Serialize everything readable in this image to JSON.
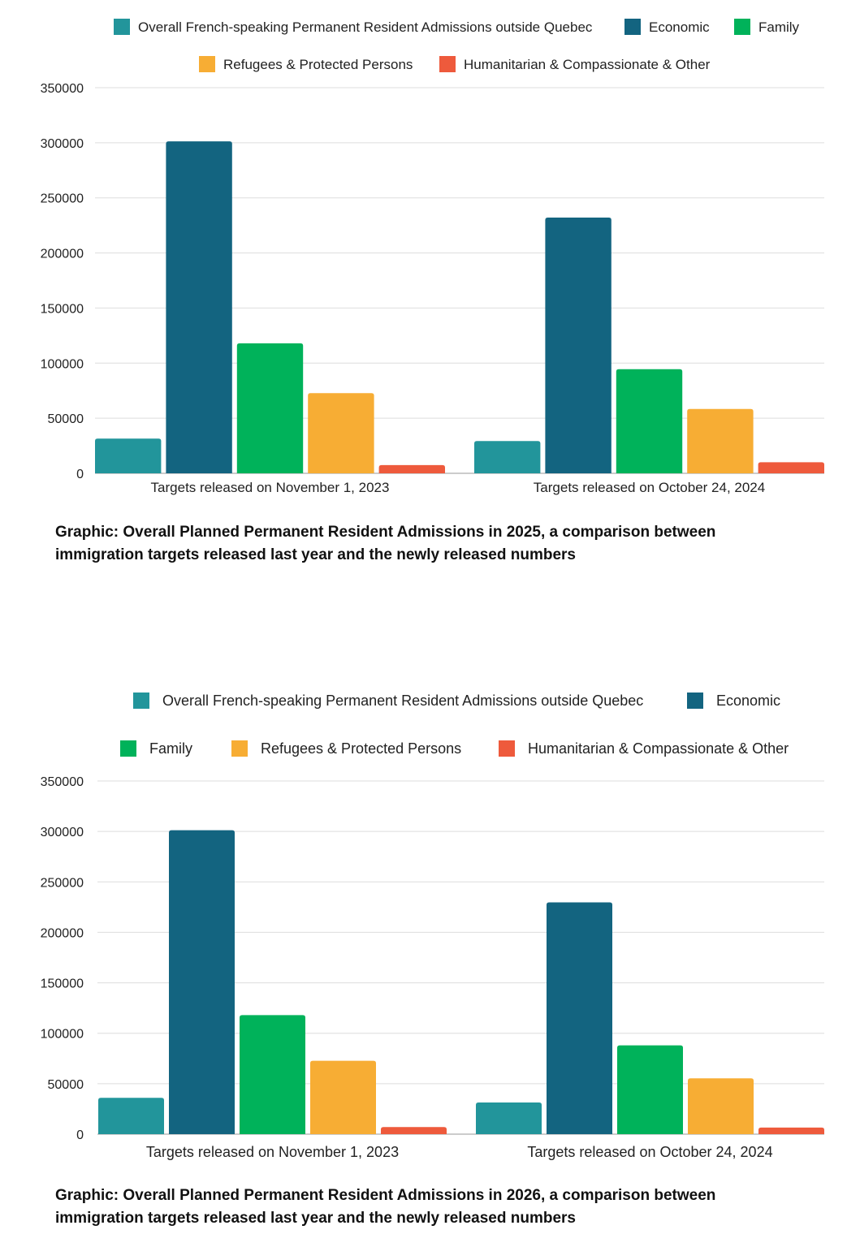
{
  "colors": {
    "francophone": "#22959b",
    "economic": "#136480",
    "family": "#00b25a",
    "refugees": "#f7ad34",
    "humanitarian": "#ee5a3c",
    "grid": "#dddddd"
  },
  "chart_data": [
    {
      "type": "bar",
      "categories": [
        "Targets released on November 1, 2023",
        "Targets released on October 24, 2024"
      ],
      "series": [
        {
          "name": "Overall French-speaking Permanent Resident Admissions outside Quebec",
          "key": "francophone",
          "values": [
            31500,
            29325
          ]
        },
        {
          "name": "Economic",
          "key": "economic",
          "values": [
            301250,
            232150
          ]
        },
        {
          "name": "Family",
          "key": "family",
          "values": [
            118000,
            94500
          ]
        },
        {
          "name": "Refugees & Protected Persons",
          "key": "refugees",
          "values": [
            72750,
            58350
          ]
        },
        {
          "name": "Humanitarian & Compassionate & Other",
          "key": "humanitarian",
          "values": [
            7500,
            10000
          ]
        }
      ],
      "yticks": [
        "0",
        "50000",
        "100000",
        "150000",
        "200000",
        "250000",
        "300000",
        "350000"
      ],
      "ylim": [
        0,
        350000
      ],
      "grid": true,
      "legend": "top",
      "caption_line1": "Graphic: Overall Planned Permanent Resident Admissions in 2025, a comparison between",
      "caption_line2": "immigration targets released last year and the newly released numbers"
    },
    {
      "type": "bar",
      "categories": [
        "Targets released on November 1, 2023",
        "Targets released on October 24, 2024"
      ],
      "series": [
        {
          "name": "Overall French-speaking Permanent Resident Admissions outside Quebec",
          "key": "francophone",
          "values": [
            36000,
            31350
          ]
        },
        {
          "name": "Economic",
          "key": "economic",
          "values": [
            301250,
            229750
          ]
        },
        {
          "name": "Family",
          "key": "family",
          "values": [
            118000,
            88000
          ]
        },
        {
          "name": "Refugees & Protected Persons",
          "key": "refugees",
          "values": [
            72750,
            55350
          ]
        },
        {
          "name": "Humanitarian & Compassionate & Other",
          "key": "humanitarian",
          "values": [
            7000,
            6500
          ]
        }
      ],
      "yticks": [
        "0",
        "50000",
        "100000",
        "150000",
        "200000",
        "250000",
        "300000",
        "350000"
      ],
      "ylim": [
        0,
        350000
      ],
      "grid": true,
      "legend": "top",
      "caption_line1": "Graphic: Overall Planned Permanent Resident Admissions in 2026, a comparison between",
      "caption_line2": "immigration targets released last year and the newly released numbers"
    }
  ]
}
